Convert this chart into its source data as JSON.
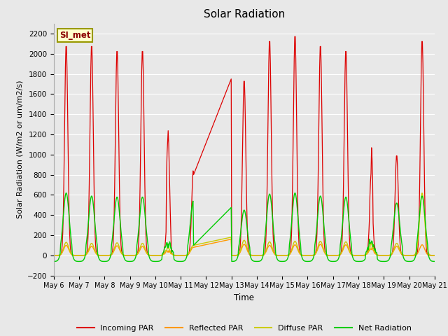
{
  "title": "Solar Radiation",
  "ylabel": "Solar Radiation (W/m2 or um/m2/s)",
  "xlabel": "Time",
  "ylim": [
    -200,
    2300
  ],
  "yticks": [
    -200,
    0,
    200,
    400,
    600,
    800,
    1000,
    1200,
    1400,
    1600,
    1800,
    2000,
    2200
  ],
  "plot_bg": "#e8e8e8",
  "fig_bg": "#e8e8e8",
  "line_colors": {
    "incoming": "#dd0000",
    "reflected": "#ff9900",
    "diffuse": "#cccc00",
    "net": "#00cc00"
  },
  "legend_label_box": "SI_met",
  "n_days": 15,
  "start_day": 6,
  "tick_labels": [
    "May 6",
    "May 7",
    "May 8",
    "May 9",
    "May 10",
    "May 11",
    "May 12",
    "May 13",
    "May 14",
    "May 15",
    "May 16",
    "May 17",
    "May 18",
    "May 19",
    "May 20",
    "May 21"
  ]
}
